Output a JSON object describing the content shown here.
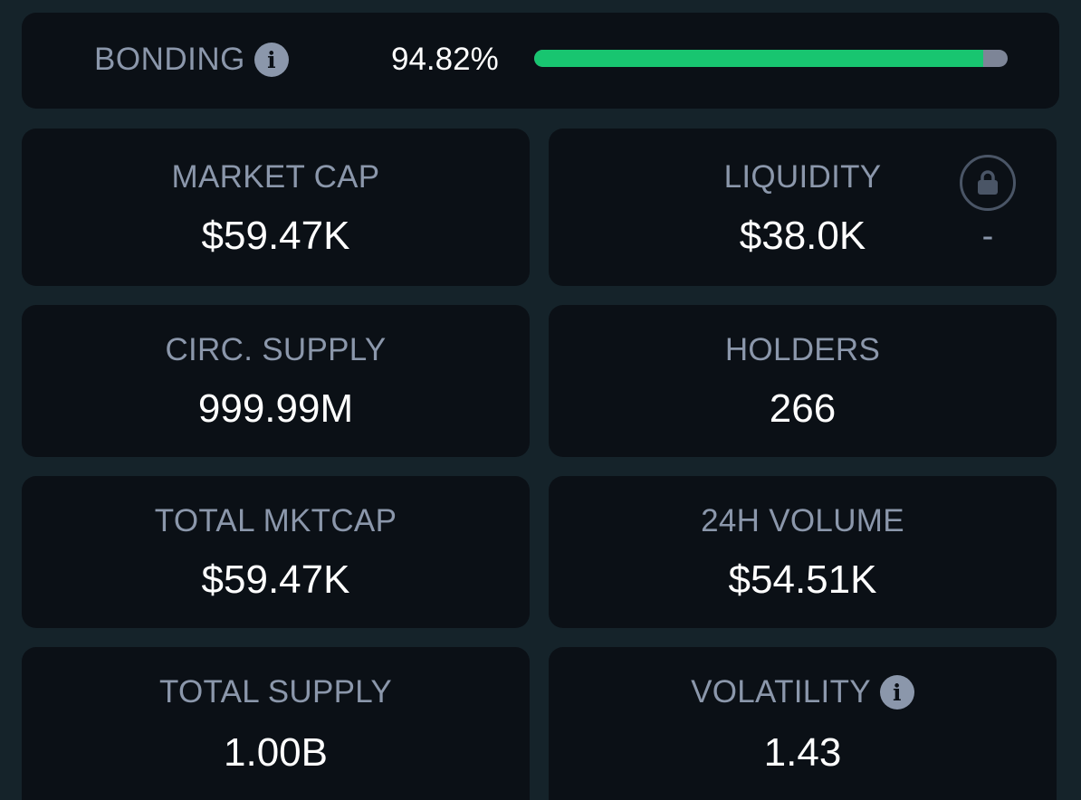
{
  "bonding": {
    "label": "BONDING",
    "percent_text": "94.82%",
    "progress_percent": 94.82,
    "info_icon": "info-icon"
  },
  "stats": {
    "market_cap": {
      "label": "MARKET CAP",
      "value": "$59.47K"
    },
    "liquidity": {
      "label": "LIQUIDITY",
      "value": "$38.0K",
      "lock_icon": "lock-icon",
      "lock_value": "-"
    },
    "circ_supply": {
      "label": "CIRC. SUPPLY",
      "value": "999.99M"
    },
    "holders": {
      "label": "HOLDERS",
      "value": "266"
    },
    "total_mktcap": {
      "label": "TOTAL MKTCAP",
      "value": "$59.47K"
    },
    "volume_24h": {
      "label": "24H VOLUME",
      "value": "$54.51K"
    },
    "total_supply": {
      "label": "TOTAL SUPPLY",
      "value": "1.00B"
    },
    "volatility": {
      "label": "VOLATILITY",
      "value": "1.43",
      "info_icon": "info-icon"
    }
  },
  "colors": {
    "background": "#15232a",
    "card": "#0b1016",
    "label": "#8b97ab",
    "value": "#ffffff",
    "progress_fill": "#18c570",
    "progress_track": "#7d8597"
  }
}
